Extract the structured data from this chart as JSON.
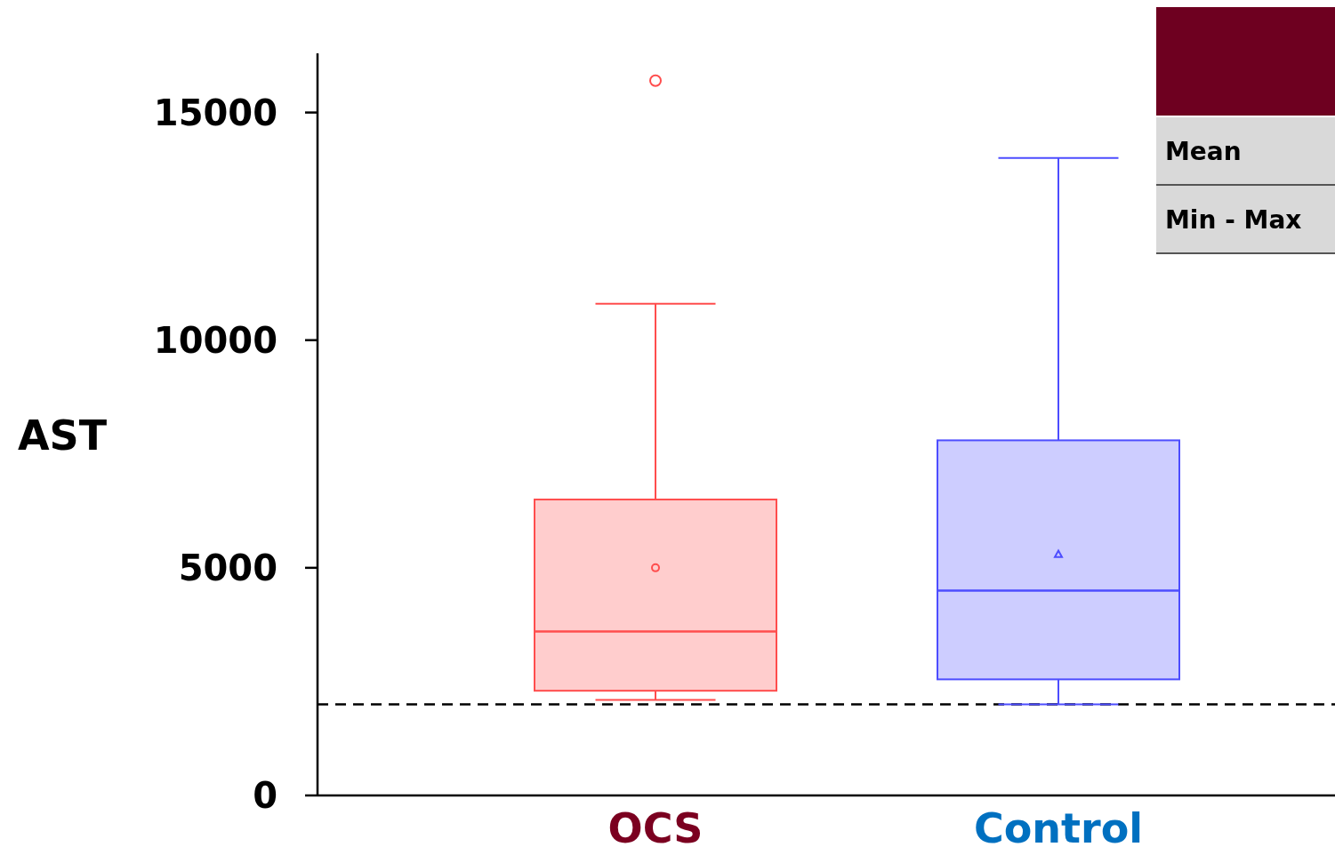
{
  "chart_data": {
    "type": "box",
    "ylabel": "AST",
    "categories": [
      "OCS",
      "Control"
    ],
    "series": [
      {
        "color": "#ff4d4d",
        "marker": "circle",
        "boxes": [
          {
            "low": 2100,
            "q1": 2300,
            "median": 3600,
            "q3": 6500,
            "high": 10800,
            "mean": 5000,
            "outliers": [
              15700
            ]
          },
          null
        ]
      },
      {
        "color": "#4d4dff",
        "marker": "triangle",
        "boxes": [
          null,
          {
            "low": 2000,
            "q1": 2550,
            "median": 4500,
            "q3": 7800,
            "high": 14000,
            "mean": 5300
          }
        ]
      }
    ],
    "ylim": [
      0,
      16300
    ],
    "yticks": [
      0,
      5000,
      10000,
      15000
    ],
    "ref_lines": [
      {
        "axis": "y",
        "value": 2000,
        "color": "#000000",
        "line_style": "dashed"
      }
    ],
    "annotations": [
      "Mean",
      "Min - Max"
    ]
  }
}
